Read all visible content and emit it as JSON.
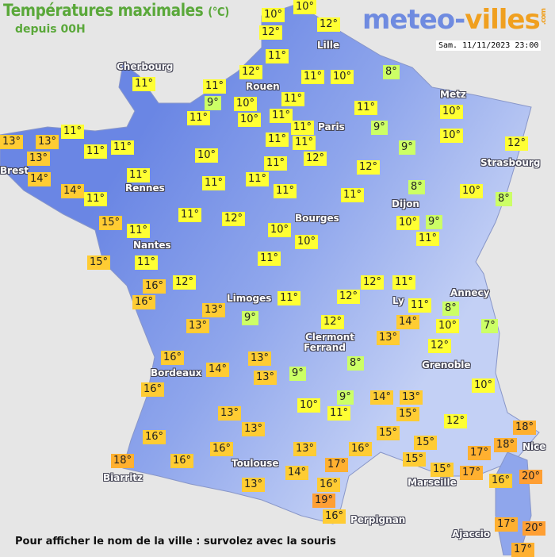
{
  "header": {
    "title": "Températures maximales",
    "unit": "(°C)",
    "subtitle": "depuis 00H"
  },
  "logo": {
    "part1": "meteo-",
    "part2": "villes",
    "suffix": ".com"
  },
  "datetime": "Sam. 11/11/2023 23:00",
  "footer": "Pour afficher le nom de la ville : survolez avec la souris",
  "colors": {
    "cold_7_9": "#ccff66",
    "mild_10_12": "#ffff33",
    "warm_13_16": "#ffcc33",
    "hot_17_18": "#ffb030",
    "hotter_19_20": "#ff9f33",
    "land_west": "#6a86e4",
    "land_east": "#c3d0f5",
    "sea": "#e6e6e6"
  },
  "cities": [
    "Lille",
    "Cherbourg",
    "Rouen",
    "Metz",
    "Paris",
    "Brest",
    "Strasbourg",
    "Rennes",
    "Dijon",
    "Bourges",
    "Nantes",
    "Annecy",
    "Limoges",
    "Ly",
    "Clermont",
    "Ferrand",
    "Grenoble",
    "Bordeaux",
    "Nice",
    "Toulouse",
    "Biarritz",
    "Marseille",
    "Perpignan",
    "Ajaccio"
  ],
  "temperatures": [
    10,
    10,
    12,
    12,
    11,
    12,
    11,
    10,
    8,
    11,
    11,
    9,
    10,
    11,
    11,
    10,
    11,
    11,
    11,
    9,
    10,
    11,
    13,
    13,
    13,
    11,
    11,
    11,
    11,
    12,
    9,
    10,
    12,
    10,
    11,
    12,
    11,
    11,
    11,
    14,
    14,
    11,
    11,
    11,
    8,
    10,
    8,
    11,
    12,
    15,
    11,
    10,
    10,
    10,
    9,
    11,
    15,
    11,
    11,
    12,
    12,
    11,
    16,
    16,
    11,
    12,
    11,
    8,
    14,
    10,
    7,
    13,
    9,
    13,
    12,
    13,
    12,
    8,
    16,
    14,
    13,
    9,
    16,
    13,
    10,
    9,
    14,
    13,
    10,
    11,
    15,
    13,
    13,
    15,
    12,
    18,
    16,
    16,
    13,
    16,
    15,
    15,
    15,
    17,
    18,
    18,
    16,
    17,
    14,
    17,
    16,
    20,
    13,
    16,
    19,
    16,
    17,
    20,
    17
  ]
}
